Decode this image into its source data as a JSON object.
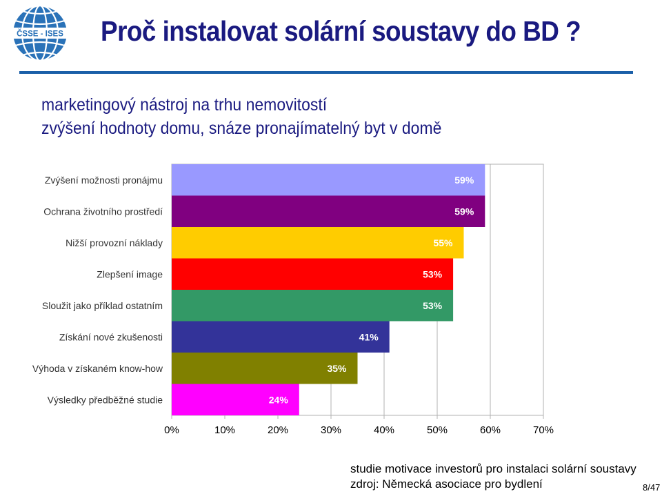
{
  "header": {
    "title": "Proč instalovat solární soustavy do BD ?",
    "logo_text": "ČSSE - ISES"
  },
  "subtitles": [
    "marketingový nástroj na trhu nemovitostí",
    "zvýšení hodnoty domu, snáze pronajímatelný byt v domě"
  ],
  "chart_data": {
    "type": "bar",
    "orientation": "horizontal",
    "categories": [
      "Zvýšení možnosti pronájmu",
      "Ochrana životního prostředí",
      "Nižší provozní náklady",
      "Zlepšení image",
      "Sloužit jako příklad ostatním",
      "Získání nové zkušenosti",
      "Výhoda v získaném know-how",
      "Výsledky předběžné studie"
    ],
    "values": [
      59,
      59,
      55,
      53,
      53,
      41,
      35,
      24
    ],
    "value_labels": [
      "59%",
      "59%",
      "55%",
      "53%",
      "53%",
      "41%",
      "35%",
      "24%"
    ],
    "colors": [
      "#9999ff",
      "#800080",
      "#ffcc00",
      "#ff0000",
      "#339966",
      "#333399",
      "#808000",
      "#ff00ff"
    ],
    "xlim": [
      0,
      70
    ],
    "x_ticks": [
      0,
      10,
      20,
      30,
      40,
      50,
      60,
      70
    ],
    "x_tick_labels": [
      "0%",
      "10%",
      "20%",
      "30%",
      "40%",
      "50%",
      "60%",
      "70%"
    ],
    "grid": "vertical"
  },
  "footer": {
    "note": "studie motivace investorů pro instalaci solární soustavy",
    "source": "zdroj: Německá asociace pro bydlení",
    "page": "8/47"
  }
}
